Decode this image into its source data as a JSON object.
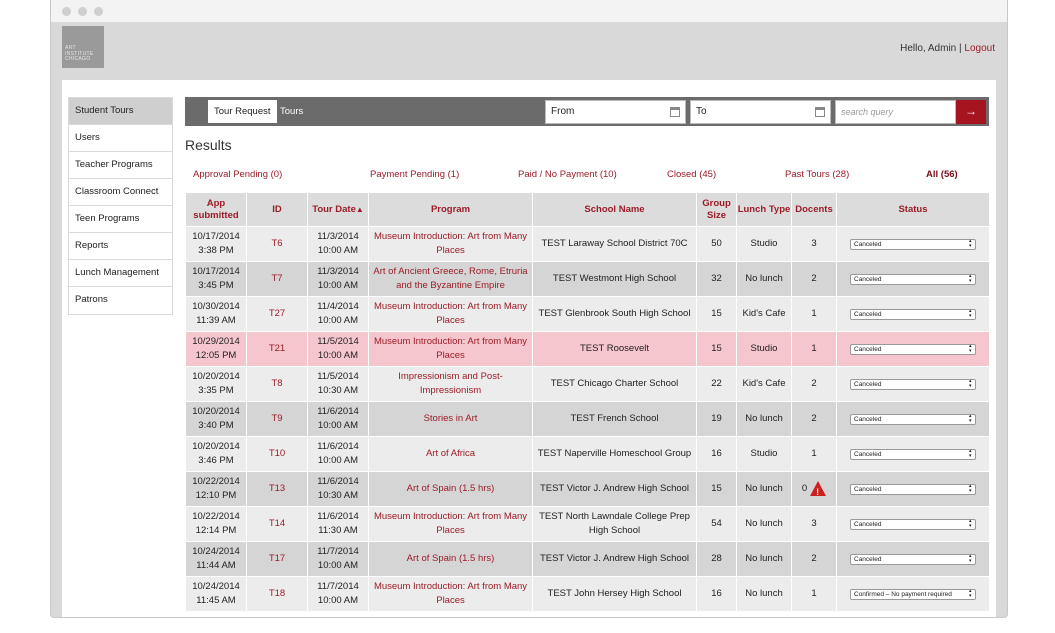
{
  "header": {
    "logo_text": "ART INSTITUTE CHICAGO",
    "greeting": "Hello, Admin",
    "separator": "|",
    "logout": "Logout"
  },
  "sidebar": {
    "items": [
      {
        "label": "Student Tours",
        "active": true
      },
      {
        "label": "Users"
      },
      {
        "label": "Teacher Programs"
      },
      {
        "label": "Classroom Connect"
      },
      {
        "label": "Teen Programs"
      },
      {
        "label": "Reports"
      },
      {
        "label": "Lunch Management"
      },
      {
        "label": "Patrons"
      }
    ]
  },
  "toolbar": {
    "tab_request": "Tour Request",
    "tab_tours": "Tours",
    "from_label": "From",
    "to_label": "To",
    "search_placeholder": "search query",
    "search_button": "→"
  },
  "results": {
    "title": "Results",
    "filters": [
      {
        "label": "Approval Pending (0)"
      },
      {
        "label": "Payment Pending (1)"
      },
      {
        "label": "Paid / No Payment (10)"
      },
      {
        "label": "Closed (45)"
      },
      {
        "label": "Past Tours (28)"
      },
      {
        "label": "All (56)",
        "active": true
      }
    ],
    "columns": [
      "App submitted",
      "ID",
      "Tour Date",
      "Program",
      "School Name",
      "Group Size",
      "Lunch Type",
      "Docents",
      "Status"
    ],
    "sort_indicator": "▲",
    "rows": [
      {
        "submitted": "10/17/2014",
        "submitted_time": "3:38 PM",
        "id": "T6",
        "tour_date": "11/3/2014",
        "tour_time": "10:00 AM",
        "program": "Museum Introduction: Art from Many Places",
        "school": "TEST Laraway School District 70C",
        "size": "50",
        "lunch": "Studio",
        "docents": "3",
        "status": "Canceled"
      },
      {
        "submitted": "10/17/2014",
        "submitted_time": "3:45 PM",
        "id": "T7",
        "tour_date": "11/3/2014",
        "tour_time": "10:00 AM",
        "program": "Art of Ancient Greece, Rome, Etruria and the Byzantine Empire",
        "school": "TEST Westmont High School",
        "size": "32",
        "lunch": "No lunch",
        "docents": "2",
        "status": "Canceled"
      },
      {
        "submitted": "10/30/2014",
        "submitted_time": "11:39 AM",
        "id": "T27",
        "tour_date": "11/4/2014",
        "tour_time": "10:00 AM",
        "program": "Museum Introduction: Art from Many Places",
        "school": "TEST Glenbrook South High School",
        "size": "15",
        "lunch": "Kid's Cafe",
        "docents": "1",
        "status": "Canceled"
      },
      {
        "submitted": "10/29/2014",
        "submitted_time": "12:05 PM",
        "id": "T21",
        "tour_date": "11/5/2014",
        "tour_time": "10:00 AM",
        "program": "Museum Introduction: Art from Many Places",
        "school": "TEST Roosevelt",
        "size": "15",
        "lunch": "Studio",
        "docents": "1",
        "status": "Canceled",
        "highlight": true
      },
      {
        "submitted": "10/20/2014",
        "submitted_time": "3:35 PM",
        "id": "T8",
        "tour_date": "11/5/2014",
        "tour_time": "10:30 AM",
        "program": "Impressionism and Post-Impressionism",
        "school": "TEST Chicago Charter School",
        "size": "22",
        "lunch": "Kid's Cafe",
        "docents": "2",
        "status": "Canceled"
      },
      {
        "submitted": "10/20/2014",
        "submitted_time": "3:40 PM",
        "id": "T9",
        "tour_date": "11/6/2014",
        "tour_time": "10:00 AM",
        "program": "Stories in Art",
        "school": "TEST French School",
        "size": "19",
        "lunch": "No lunch",
        "docents": "2",
        "status": "Canceled"
      },
      {
        "submitted": "10/20/2014",
        "submitted_time": "3:46 PM",
        "id": "T10",
        "tour_date": "11/6/2014",
        "tour_time": "10:00 AM",
        "program": "Art of Africa",
        "school": "TEST Naperville Homeschool Group",
        "size": "16",
        "lunch": "Studio",
        "docents": "1",
        "status": "Canceled"
      },
      {
        "submitted": "10/22/2014",
        "submitted_time": "12:10 PM",
        "id": "T13",
        "tour_date": "11/6/2014",
        "tour_time": "10:30 AM",
        "program": "Art of Spain (1.5 hrs)",
        "school": "TEST Victor J. Andrew High School",
        "size": "15",
        "lunch": "No lunch",
        "docents": "0",
        "status": "Canceled",
        "warning": true
      },
      {
        "submitted": "10/22/2014",
        "submitted_time": "12:14 PM",
        "id": "T14",
        "tour_date": "11/6/2014",
        "tour_time": "11:30 AM",
        "program": "Museum Introduction: Art from Many Places",
        "school": "TEST North Lawndale College Prep High School",
        "size": "54",
        "lunch": "No lunch",
        "docents": "3",
        "status": "Canceled"
      },
      {
        "submitted": "10/24/2014",
        "submitted_time": "11:44 AM",
        "id": "T17",
        "tour_date": "11/7/2014",
        "tour_time": "10:00 AM",
        "program": "Art of Spain (1.5 hrs)",
        "school": "TEST Victor J. Andrew High School",
        "size": "28",
        "lunch": "No lunch",
        "docents": "2",
        "status": "Canceled"
      },
      {
        "submitted": "10/24/2014",
        "submitted_time": "11:45 AM",
        "id": "T18",
        "tour_date": "11/7/2014",
        "tour_time": "10:00 AM",
        "program": "Museum Introduction: Art from Many Places",
        "school": "TEST John Hersey High School",
        "size": "16",
        "lunch": "No lunch",
        "docents": "1",
        "status": "Confirmed – No payment required"
      }
    ]
  },
  "colors": {
    "accent": "#9b1c28",
    "highlight_row": "#f6c6cf",
    "warning": "#cc1f1f"
  }
}
